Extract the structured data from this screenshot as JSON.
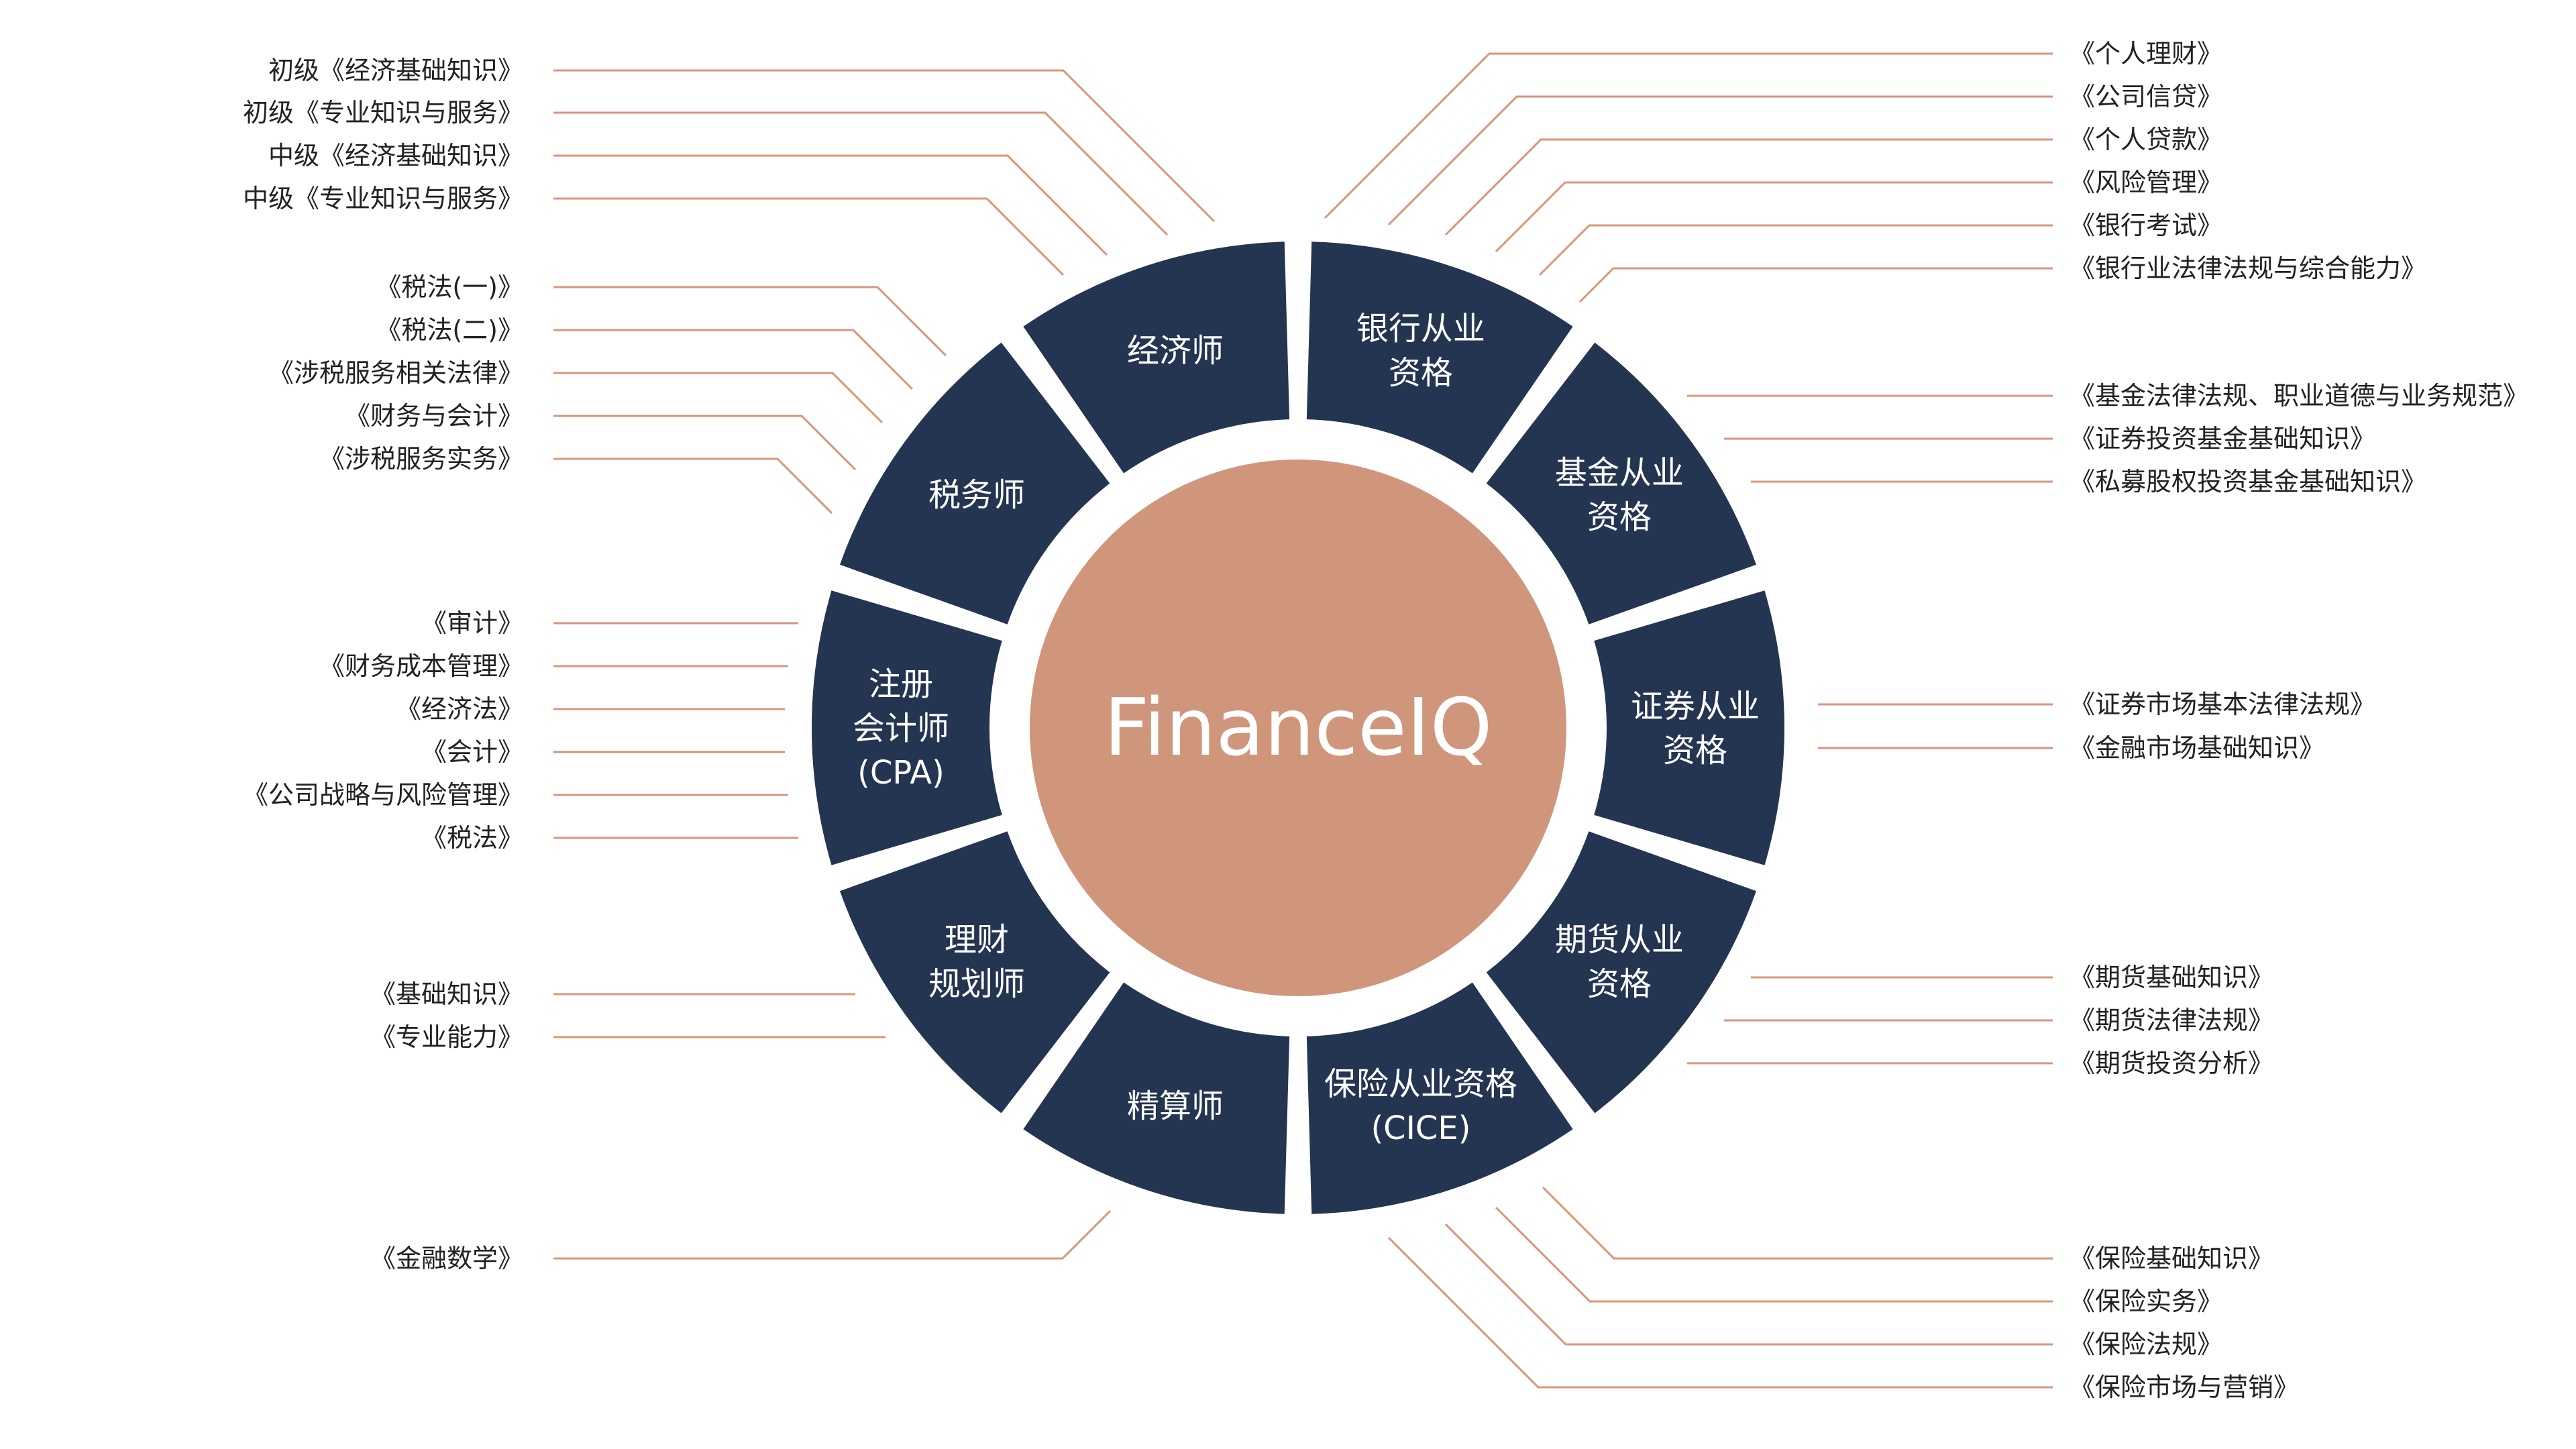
{
  "colors": {
    "segment": "#243552",
    "center": "#d0967b",
    "leader": "#d9967a",
    "item_text": "#222222",
    "segment_text": "#ffffff",
    "background": "#ffffff"
  },
  "center": {
    "title": "FinanceIQ"
  },
  "segments": [
    {
      "id": "bank",
      "label": [
        "银行从业",
        "资格"
      ]
    },
    {
      "id": "fund",
      "label": [
        "基金从业",
        "资格"
      ]
    },
    {
      "id": "securities",
      "label": [
        "证券从业",
        "资格"
      ]
    },
    {
      "id": "futures",
      "label": [
        "期货从业",
        "资格"
      ]
    },
    {
      "id": "insurance",
      "label": [
        "保险从业资格",
        "(CICE)"
      ]
    },
    {
      "id": "actuary",
      "label": [
        "精算师"
      ]
    },
    {
      "id": "planner",
      "label": [
        "理财",
        "规划师"
      ]
    },
    {
      "id": "cpa",
      "label": [
        "注册",
        "会计师",
        "(CPA)"
      ]
    },
    {
      "id": "tax",
      "label": [
        "税务师"
      ]
    },
    {
      "id": "economist",
      "label": [
        "经济师"
      ]
    }
  ],
  "subjects": {
    "economist": [
      "初级《经济基础知识》",
      "初级《专业知识与服务》",
      "中级《经济基础知识》",
      "中级《专业知识与服务》"
    ],
    "tax": [
      "《税法(一)》",
      "《税法(二)》",
      "《涉税服务相关法律》",
      "《财务与会计》",
      "《涉税服务实务》"
    ],
    "cpa": [
      "《审计》",
      "《财务成本管理》",
      "《经济法》",
      "《会计》",
      "《公司战略与风险管理》",
      "《税法》"
    ],
    "planner": [
      "《基础知识》",
      "《专业能力》"
    ],
    "actuary": [
      "《金融数学》"
    ],
    "bank": [
      "《个人理财》",
      "《公司信贷》",
      "《个人贷款》",
      "《风险管理》",
      "《银行考试》",
      "《银行业法律法规与综合能力》"
    ],
    "fund": [
      "《基金法律法规、职业道德与业务规范》",
      "《证券投资基金基础知识》",
      "《私募股权投资基金基础知识》"
    ],
    "securities": [
      "《证券市场基本法律法规》",
      "《金融市场基础知识》"
    ],
    "futures": [
      "《期货基础知识》",
      "《期货法律法规》",
      "《期货投资分析》"
    ],
    "insurance": [
      "《保险基础知识》",
      "《保险实务》",
      "《保险法规》",
      "《保险市场与营销》"
    ]
  }
}
